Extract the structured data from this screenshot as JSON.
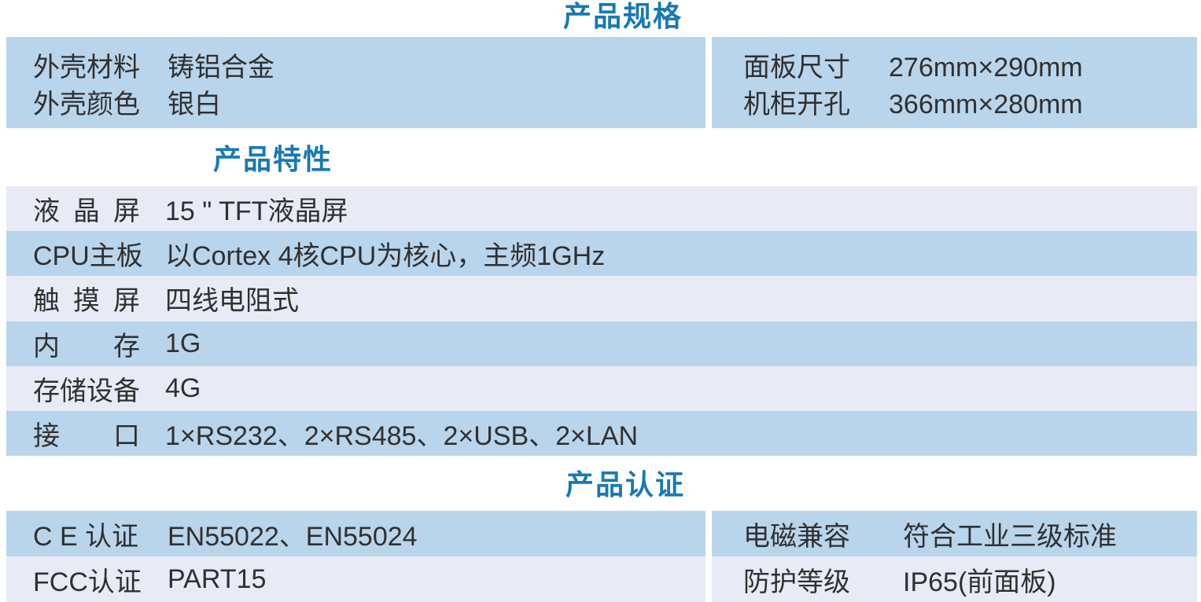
{
  "colors": {
    "title-blue": "#1779b5",
    "row-blue": "#b9d5eb",
    "row-lavender": "#e8ebf6",
    "text": "#303030"
  },
  "spec": {
    "title": "产品规格",
    "left": {
      "rows": [
        {
          "label": "外壳材料",
          "value": "铸铝合金"
        },
        {
          "label": "外壳颜色",
          "value": "银白"
        }
      ]
    },
    "right": {
      "rows": [
        {
          "label": "面板尺寸",
          "value": "276mm×290mm"
        },
        {
          "label": "机柜开孔",
          "value": "366mm×280mm"
        }
      ]
    }
  },
  "features": {
    "title": "产品特性",
    "rows": [
      {
        "label": "液 晶 屏",
        "value": "15 \" TFT液晶屏"
      },
      {
        "label": "CPU主板",
        "value": "以Cortex 4核CPU为核心，主频1GHz"
      },
      {
        "label": "触 摸 屏",
        "value": "四线电阻式"
      },
      {
        "label": "内 存",
        "value": "1G"
      },
      {
        "label": "存储设备",
        "value": "4G"
      },
      {
        "label": "接 口",
        "value": "1×RS232、2×RS485、2×USB、2×LAN"
      }
    ]
  },
  "certs": {
    "title": "产品认证",
    "left": {
      "rows": [
        {
          "label": "C E 认证",
          "value": "EN55022、EN55024"
        },
        {
          "label": "FCC认证",
          "value": "PART15"
        }
      ]
    },
    "right": {
      "rows": [
        {
          "label": "电磁兼容",
          "value": "符合工业三级标准"
        },
        {
          "label": "防护等级",
          "value": "IP65(前面板)"
        }
      ]
    }
  }
}
